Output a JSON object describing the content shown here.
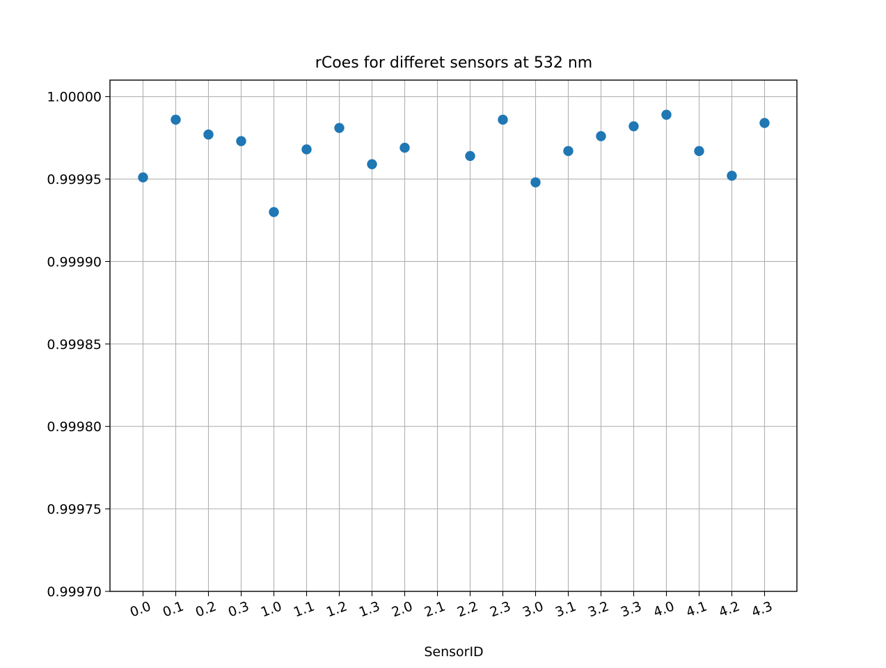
{
  "chart_data": {
    "type": "scatter",
    "title": "rCoes for differet sensors at 532 nm",
    "xlabel": "SensorID",
    "ylabel": "",
    "categories": [
      "0.0",
      "0.1",
      "0.2",
      "0.3",
      "1.0",
      "1.1",
      "1.2",
      "1.3",
      "2.0",
      "2.1",
      "2.2",
      "2.3",
      "3.0",
      "3.1",
      "3.2",
      "3.3",
      "4.0",
      "4.1",
      "4.2",
      "4.3"
    ],
    "series": [
      {
        "points": [
          {
            "x": "0.0",
            "y": 0.999951
          },
          {
            "x": "0.1",
            "y": 0.999986
          },
          {
            "x": "0.2",
            "y": 0.999977
          },
          {
            "x": "0.3",
            "y": 0.999973
          },
          {
            "x": "1.0",
            "y": 0.99993
          },
          {
            "x": "1.1",
            "y": 0.999968
          },
          {
            "x": "1.2",
            "y": 0.999981
          },
          {
            "x": "1.3",
            "y": 0.999959
          },
          {
            "x": "2.0",
            "y": 0.999969
          },
          {
            "x": "2.2",
            "y": 0.999964
          },
          {
            "x": "2.3",
            "y": 0.999986
          },
          {
            "x": "3.0",
            "y": 0.999948
          },
          {
            "x": "3.1",
            "y": 0.999967
          },
          {
            "x": "3.2",
            "y": 0.999976
          },
          {
            "x": "3.3",
            "y": 0.999982
          },
          {
            "x": "4.0",
            "y": 0.999989
          },
          {
            "x": "4.1",
            "y": 0.999967
          },
          {
            "x": "4.2",
            "y": 0.999952
          },
          {
            "x": "4.3",
            "y": 0.999984
          }
        ]
      }
    ],
    "ylim": [
      0.9997,
      1.00001
    ],
    "yticks": [
      0.9997,
      0.99975,
      0.9998,
      0.99985,
      0.9999,
      0.99995,
      1.0
    ],
    "ytick_labels": [
      "0.99970",
      "0.99975",
      "0.99980",
      "0.99985",
      "0.99990",
      "0.99995",
      "1.00000"
    ],
    "grid": true,
    "x_tick_rotation_deg": 20,
    "colors": {
      "marker": "#1f77b4",
      "grid": "#b0b0b0",
      "axes": "#000000"
    }
  }
}
